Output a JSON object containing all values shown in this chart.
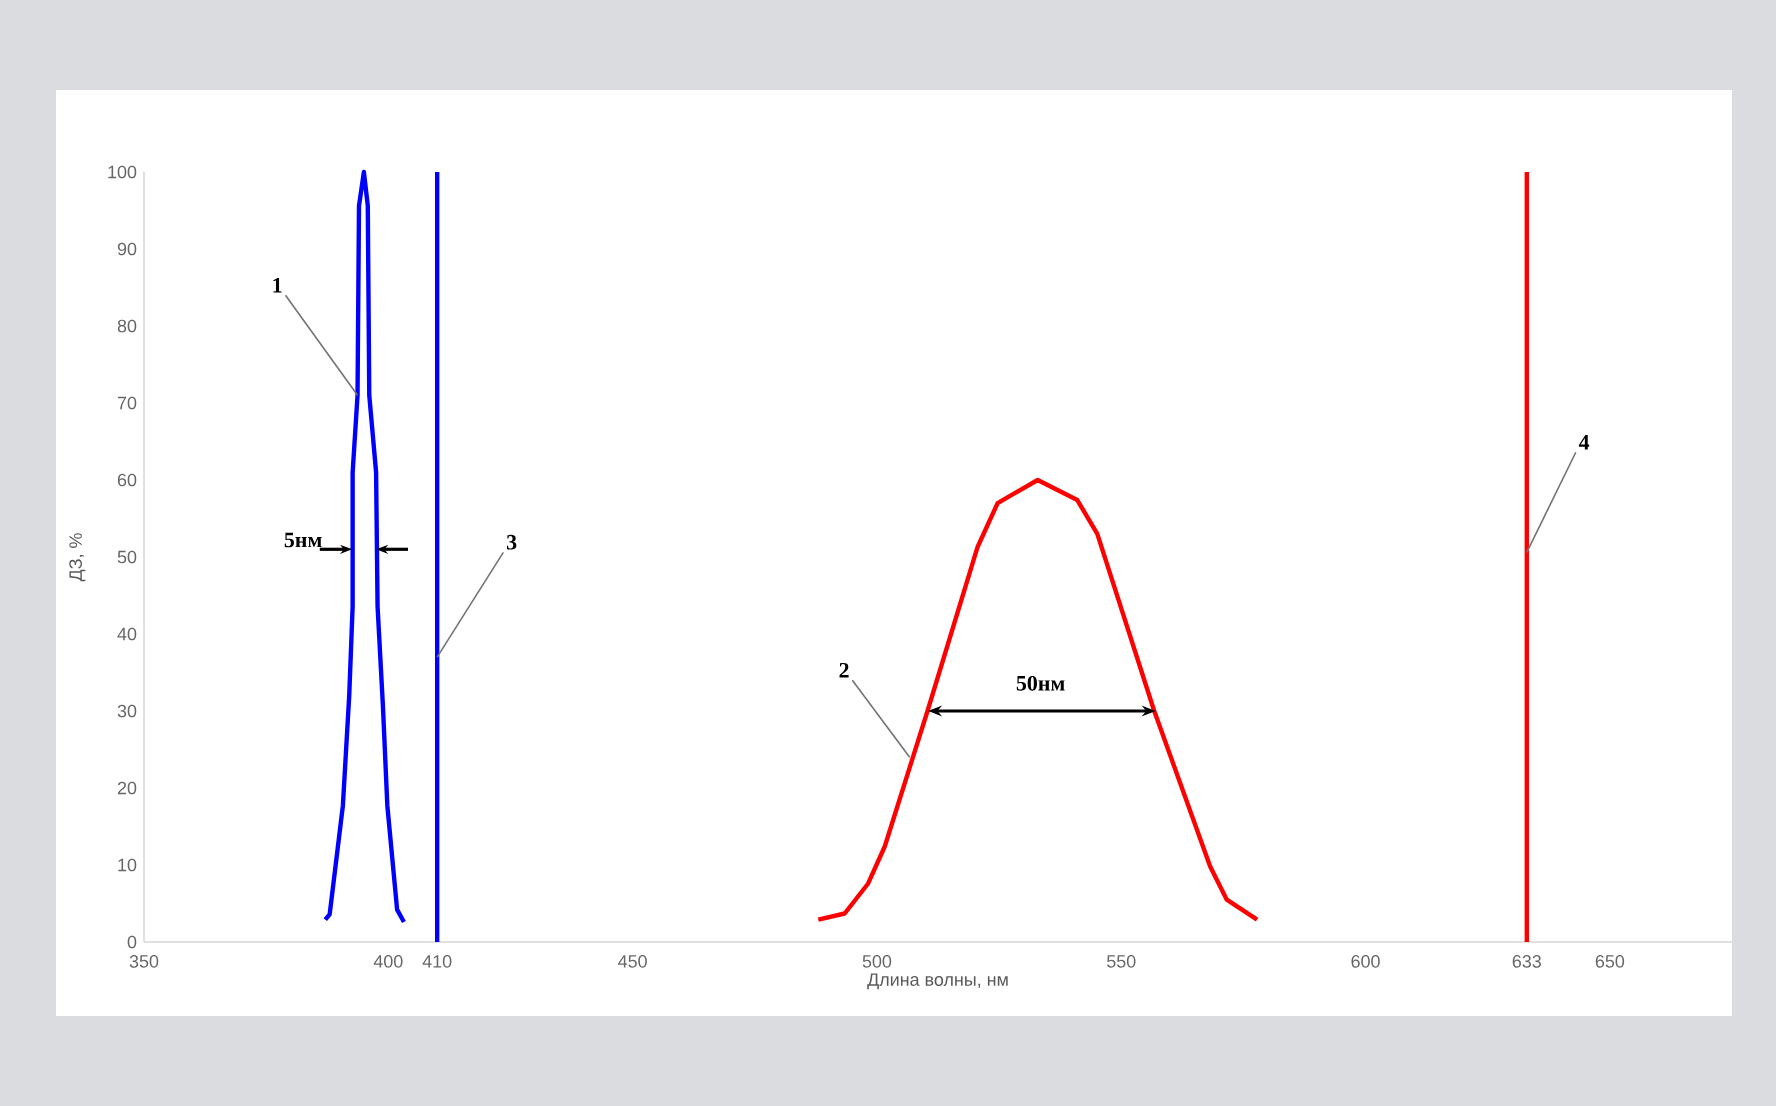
{
  "chart_data": {
    "type": "line",
    "xlabel": "Длина волны, нм",
    "ylabel": "ДЗ, %",
    "xlim": [
      350,
      675
    ],
    "ylim": [
      0,
      100
    ],
    "xticks": [
      350,
      400,
      410,
      450,
      500,
      550,
      600,
      633,
      650
    ],
    "yticks": [
      0,
      10,
      20,
      30,
      40,
      50,
      60,
      70,
      80,
      90,
      100
    ],
    "series": [
      {
        "color": "#0000ff",
        "x": [
          387.1,
          388,
          390.7,
          392,
          392.7,
          392.7,
          393.7,
          394,
          395,
          395.8,
          396.1,
          397.5,
          397.8,
          398.9,
          399.8,
          401.8,
          403.2
        ],
        "values": [
          2.9,
          3.6,
          17.7,
          32,
          43.6,
          61,
          71,
          95.6,
          100,
          95.6,
          71,
          61,
          43.6,
          30.6,
          17.7,
          4.2,
          2.6
        ]
      },
      {
        "color": "#ff0000",
        "x": [
          488,
          493.4,
          498.2,
          501.6,
          510.4,
          520.6,
          524.7,
          532.9,
          541,
          545.1,
          556.7,
          568.2,
          571.6,
          577.8
        ],
        "values": [
          2.9,
          3.7,
          7.6,
          12.4,
          30.1,
          51.3,
          57,
          60,
          57.4,
          53,
          30.1,
          9.8,
          5.5,
          2.9
        ]
      },
      {
        "color": "#0000ff",
        "x": [
          410,
          410
        ],
        "values": [
          0,
          100
        ]
      },
      {
        "color": "#ff0000",
        "x": [
          633,
          633
        ],
        "values": [
          0,
          100
        ]
      }
    ],
    "annotations": [
      {
        "text": "1",
        "x": 393.7,
        "y": 71
      },
      {
        "text": "2",
        "x": 506.7,
        "y": 24
      },
      {
        "text": "3",
        "x": 410,
        "y": 37
      },
      {
        "text": "4",
        "x": 633,
        "y": 50.6
      },
      {
        "text": "5нм",
        "x": 395,
        "y": 51
      },
      "50нм"
    ]
  }
}
